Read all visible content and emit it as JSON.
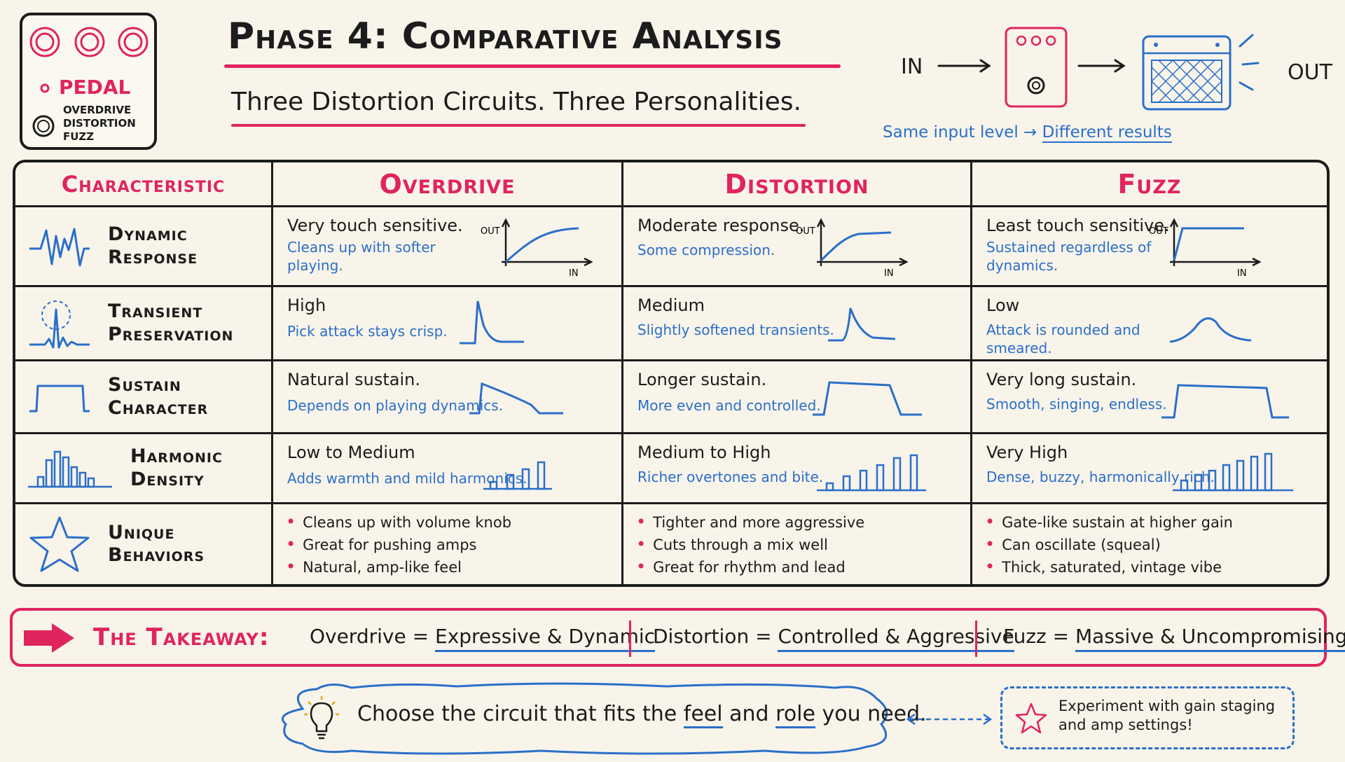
{
  "header": {
    "title": "Phase 4: Comparative Analysis",
    "subtitle": "Three Distortion Circuits. Three Personalities."
  },
  "pedal_card": {
    "title": "PEDAL",
    "types": [
      "OVERDRIVE",
      "DISTORTION",
      "FUZZ"
    ]
  },
  "signal_chain": {
    "in_label": "IN",
    "out_label": "OUT",
    "note_prefix": "Same input level",
    "note_arrow": "→",
    "note_result": "Different results"
  },
  "table": {
    "headers": [
      "Characteristic",
      "Overdrive",
      "Distortion",
      "Fuzz"
    ],
    "rows": [
      {
        "label": "Dynamic\nResponse",
        "cells": [
          {
            "main": "Very touch sensitive.",
            "sub": "Cleans up with softer\nplaying."
          },
          {
            "main": "Moderate response.",
            "sub": "Some compression."
          },
          {
            "main": "Least touch sensitive.",
            "sub": "Sustained regardless of\ndynamics."
          }
        ]
      },
      {
        "label": "Transient\nPreservation",
        "cells": [
          {
            "main": "High",
            "sub": "Pick attack stays crisp."
          },
          {
            "main": "Medium",
            "sub": "Slightly softened transients."
          },
          {
            "main": "Low",
            "sub": "Attack is rounded and\nsmeared."
          }
        ]
      },
      {
        "label": "Sustain\nCharacter",
        "cells": [
          {
            "main": "Natural sustain.",
            "sub": "Depends on playing dynamics."
          },
          {
            "main": "Longer sustain.",
            "sub": "More even and controlled."
          },
          {
            "main": "Very long sustain.",
            "sub": "Smooth, singing, endless."
          }
        ]
      },
      {
        "label": "Harmonic\nDensity",
        "cells": [
          {
            "main": "Low to Medium",
            "sub": "Adds warmth and mild harmonics."
          },
          {
            "main": "Medium to High",
            "sub": "Richer overtones and bite."
          },
          {
            "main": "Very High",
            "sub": "Dense, buzzy, harmonically rich."
          }
        ]
      },
      {
        "label": "Unique\nBehaviors",
        "bullets": [
          [
            "Cleans up with volume knob",
            "Great for pushing amps",
            "Natural, amp-like feel"
          ],
          [
            "Tighter and more aggressive",
            "Cuts through a mix well",
            "Great for rhythm and lead"
          ],
          [
            "Gate-like sustain at higher gain",
            "Can oscillate (squeal)",
            "Thick, saturated, vintage vibe"
          ]
        ]
      }
    ],
    "graph_axis": {
      "out": "OUT",
      "in": "IN"
    }
  },
  "takeaway": {
    "label": "The Takeaway:",
    "items": [
      {
        "name": "Overdrive",
        "eq": "=",
        "desc": "Expressive & Dynamic"
      },
      {
        "name": "Distortion",
        "eq": "=",
        "desc": "Controlled & Aggressive"
      },
      {
        "name": "Fuzz",
        "eq": "=",
        "desc": "Massive & Uncompromising"
      }
    ]
  },
  "footer": {
    "pre": "Choose the circuit that fits the",
    "emph1": "feel",
    "mid": "and",
    "emph2": "role",
    "post": "you need.",
    "experiment": "Experiment with gain staging\nand amp settings!"
  },
  "colors": {
    "accent": "#e0245e",
    "blue": "#2a6fc9",
    "ink": "#1c1c1c",
    "paper": "#f8f4ea"
  },
  "icons": [
    "knob-icon",
    "waveform-icon",
    "transient-icon",
    "sustain-envelope-icon",
    "harmonics-icon",
    "star-icon",
    "arrow-right-icon",
    "lightbulb-icon",
    "amp-icon",
    "pedal-icon"
  ]
}
